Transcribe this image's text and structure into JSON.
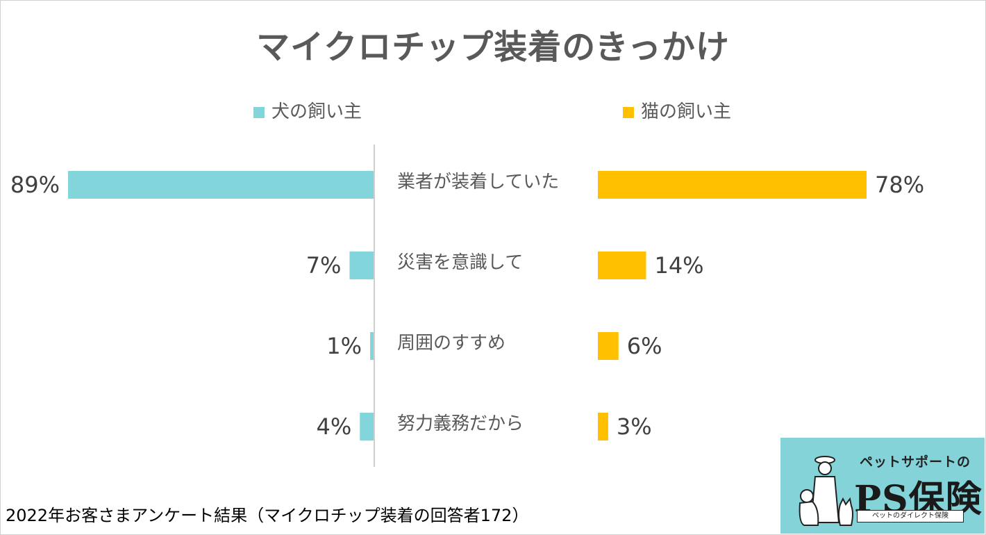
{
  "chart_data": {
    "type": "bar",
    "title": "マイクロチップ装着のきっかけ",
    "categories": [
      "業者が装着していた",
      "災害を意識して",
      "周囲のすすめ",
      "努力義務だから"
    ],
    "series": [
      {
        "name": "犬の飼い主",
        "values": [
          89,
          7,
          1,
          4
        ],
        "labels": [
          "89%",
          "7%",
          "1%",
          "4%"
        ]
      },
      {
        "name": "猫の飼い主",
        "values": [
          78,
          14,
          6,
          3
        ],
        "labels": [
          "78%",
          "14%",
          "6%",
          "3%"
        ]
      }
    ],
    "unit": "%",
    "legend": "top"
  },
  "colors": {
    "dog": "#83d5dc",
    "cat": "#ffc000",
    "text": "#595959",
    "axis": "#bfbfbf"
  },
  "footnote": "2022年お客さまアンケート結果（マイクロチップ装着の回答者172）",
  "logo": {
    "sub": "ペットサポートの",
    "main": "PS保険",
    "tag": "ペットのダイレクト保険",
    "icon": "dog-cat-owner-icon"
  }
}
